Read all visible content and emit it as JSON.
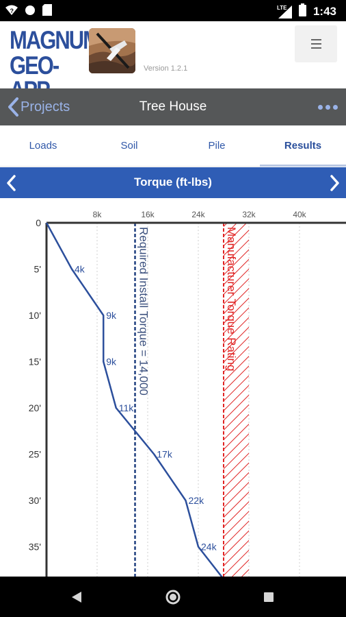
{
  "status_bar": {
    "time": "1:43",
    "network": "LTE",
    "icons": [
      "wifi-question-icon",
      "circle-icon",
      "sd-card-icon",
      "signal-icon",
      "battery-icon"
    ]
  },
  "header": {
    "brand_line1": "MAGNUM",
    "brand_line2": "GEO-APP",
    "version": "Version 1.2.1",
    "menu_icon": "hamburger-menu-icon"
  },
  "nav": {
    "back_label": "Projects",
    "title": "Tree House",
    "more_icon": "more-dots-icon"
  },
  "tabs": [
    {
      "label": "Loads",
      "active": false
    },
    {
      "label": "Soil",
      "active": false
    },
    {
      "label": "Pile",
      "active": false
    },
    {
      "label": "Results",
      "active": true
    }
  ],
  "chart_header": {
    "title": "Torque (ft-lbs)"
  },
  "chart_data": {
    "type": "line",
    "title": "Torque (ft-lbs)",
    "x_ticks": [
      0,
      8000,
      16000,
      24000,
      32000,
      40000
    ],
    "x_tick_labels": [
      "",
      "8k",
      "16k",
      "24k",
      "32k",
      "40k"
    ],
    "y_ticks": [
      0,
      5,
      10,
      15,
      20,
      25,
      30,
      35
    ],
    "y_tick_labels": [
      "0",
      "5'",
      "10'",
      "15'",
      "20'",
      "25'",
      "30'",
      "35'"
    ],
    "xlim": [
      0,
      44000
    ],
    "ylim": [
      0,
      38.5
    ],
    "series": [
      {
        "depth": [
          0,
          5,
          10,
          15,
          20,
          25,
          30,
          35,
          38.5
        ],
        "torque": [
          0,
          4000,
          9000,
          9000,
          11000,
          17000,
          22000,
          24000,
          28000
        ],
        "labels": [
          "",
          "4k",
          "9k",
          "9k",
          "11k",
          "17k",
          "22k",
          "24k",
          ""
        ]
      }
    ],
    "required_install_torque": {
      "value": 14000,
      "label": "Required Install Torque = 14,000"
    },
    "manufacturer_rating": {
      "from": 28000,
      "to": 32000,
      "label": "Manufacturer Torque Rating"
    },
    "colors": {
      "line": "#2c4f9c",
      "required": "#1f3f7f",
      "rating": "#e02424",
      "grid": "#cfcfcf"
    }
  }
}
